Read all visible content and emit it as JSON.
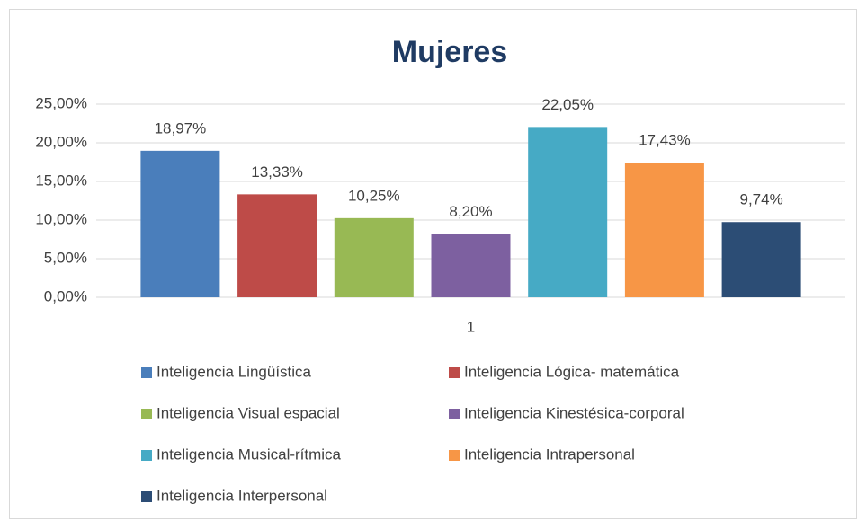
{
  "chart_data": {
    "type": "bar",
    "title": "Mujeres",
    "categories": [
      "1"
    ],
    "series": [
      {
        "name": "Inteligencia Lingüística",
        "color": "#4a7ebb",
        "values": [
          18.97
        ],
        "value_labels": [
          "18,97%"
        ]
      },
      {
        "name": "Inteligencia Lógica- matemática",
        "color": "#be4b48",
        "values": [
          13.33
        ],
        "value_labels": [
          "13,33%"
        ]
      },
      {
        "name": "Inteligencia Visual espacial",
        "color": "#98b954",
        "values": [
          10.25
        ],
        "value_labels": [
          "10,25%"
        ]
      },
      {
        "name": "Inteligencia Kinestésica-corporal",
        "color": "#7d60a0",
        "values": [
          8.2
        ],
        "value_labels": [
          "8,20%"
        ]
      },
      {
        "name": "Inteligencia Musical-rítmica",
        "color": "#46aac5",
        "values": [
          22.05
        ],
        "value_labels": [
          "22,05%"
        ]
      },
      {
        "name": "Inteligencia Intrapersonal",
        "color": "#f79646",
        "values": [
          17.43
        ],
        "value_labels": [
          "17,43%"
        ]
      },
      {
        "name": "Inteligencia Interpersonal",
        "color": "#2c4d75",
        "values": [
          9.74
        ],
        "value_labels": [
          "9,74%"
        ]
      }
    ],
    "ylim": [
      0,
      25
    ],
    "yticks": [
      {
        "value": 0,
        "label": "0,00%"
      },
      {
        "value": 5,
        "label": "5,00%"
      },
      {
        "value": 10,
        "label": "10,00%"
      },
      {
        "value": 15,
        "label": "15,00%"
      },
      {
        "value": 20,
        "label": "20,00%"
      },
      {
        "value": 25,
        "label": "25,00%"
      }
    ],
    "grid": true,
    "legend": "bottom"
  }
}
